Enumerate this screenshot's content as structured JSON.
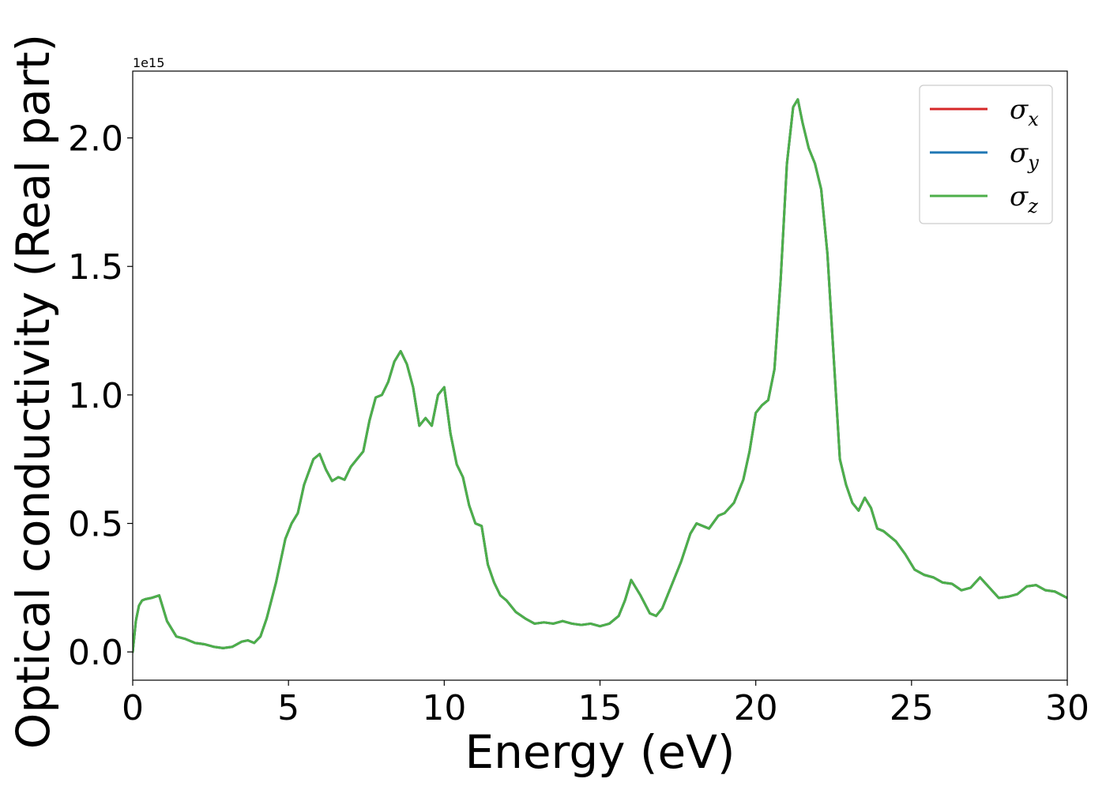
{
  "chart_data": {
    "type": "line",
    "xlabel": "Energy (eV)",
    "ylabel": "Optical conductivity (Real part)",
    "offset_text": "1e15",
    "xlim": [
      0,
      30
    ],
    "ylim": [
      -0.11,
      2.26
    ],
    "y_scale": 1000000000000000.0,
    "xticks": [
      0,
      5,
      10,
      15,
      20,
      25,
      30
    ],
    "xtick_labels": [
      "0",
      "5",
      "10",
      "15",
      "20",
      "25",
      "30"
    ],
    "yticks": [
      0.0,
      0.5,
      1.0,
      1.5,
      2.0
    ],
    "ytick_labels": [
      "0.0",
      "0.5",
      "1.0",
      "1.5",
      "2.0"
    ],
    "grid": false,
    "legend_placement": "top-right",
    "colors": {
      "x": "#d62728",
      "y": "#1f77b4",
      "z": "#4daf4a"
    },
    "x": [
      0,
      0.1,
      0.2,
      0.3,
      0.4,
      0.6,
      0.85,
      1.1,
      1.4,
      1.7,
      2.0,
      2.3,
      2.6,
      2.9,
      3.2,
      3.5,
      3.7,
      3.9,
      4.1,
      4.3,
      4.6,
      4.9,
      5.1,
      5.3,
      5.5,
      5.8,
      6.0,
      6.2,
      6.4,
      6.6,
      6.8,
      7.0,
      7.2,
      7.4,
      7.6,
      7.8,
      8.0,
      8.2,
      8.4,
      8.6,
      8.8,
      9.0,
      9.2,
      9.4,
      9.6,
      9.8,
      10.0,
      10.2,
      10.4,
      10.6,
      10.8,
      11.0,
      11.2,
      11.4,
      11.6,
      11.8,
      12.0,
      12.3,
      12.6,
      12.9,
      13.2,
      13.5,
      13.8,
      14.1,
      14.4,
      14.7,
      15.0,
      15.3,
      15.6,
      15.8,
      16.0,
      16.3,
      16.6,
      16.8,
      17.0,
      17.3,
      17.6,
      17.9,
      18.1,
      18.3,
      18.5,
      18.8,
      19.0,
      19.3,
      19.6,
      19.8,
      20.0,
      20.2,
      20.4,
      20.6,
      20.8,
      21.0,
      21.2,
      21.35,
      21.5,
      21.7,
      21.9,
      22.1,
      22.3,
      22.5,
      22.7,
      22.9,
      23.1,
      23.3,
      23.5,
      23.7,
      23.9,
      24.1,
      24.3,
      24.5,
      24.8,
      25.1,
      25.4,
      25.7,
      26.0,
      26.3,
      26.6,
      26.9,
      27.2,
      27.5,
      27.8,
      28.1,
      28.4,
      28.7,
      29.0,
      29.3,
      29.6,
      30.0
    ],
    "series": [
      {
        "name": "σ_x",
        "label_base": "σ",
        "label_sub": "x",
        "color_key": "x",
        "values": [
          0.0,
          0.12,
          0.18,
          0.2,
          0.205,
          0.21,
          0.22,
          0.12,
          0.06,
          0.05,
          0.035,
          0.03,
          0.02,
          0.015,
          0.02,
          0.04,
          0.045,
          0.035,
          0.06,
          0.13,
          0.27,
          0.44,
          0.5,
          0.54,
          0.65,
          0.75,
          0.77,
          0.71,
          0.665,
          0.68,
          0.67,
          0.72,
          0.75,
          0.78,
          0.9,
          0.99,
          1.0,
          1.05,
          1.13,
          1.17,
          1.12,
          1.03,
          0.88,
          0.91,
          0.88,
          1.0,
          1.03,
          0.85,
          0.73,
          0.68,
          0.57,
          0.5,
          0.49,
          0.34,
          0.27,
          0.22,
          0.2,
          0.155,
          0.13,
          0.11,
          0.115,
          0.11,
          0.12,
          0.11,
          0.105,
          0.11,
          0.1,
          0.11,
          0.14,
          0.2,
          0.28,
          0.22,
          0.15,
          0.14,
          0.17,
          0.26,
          0.35,
          0.46,
          0.5,
          0.49,
          0.48,
          0.53,
          0.54,
          0.58,
          0.67,
          0.78,
          0.93,
          0.96,
          0.98,
          1.1,
          1.45,
          1.9,
          2.12,
          2.15,
          2.06,
          1.96,
          1.9,
          1.8,
          1.55,
          1.15,
          0.75,
          0.65,
          0.58,
          0.55,
          0.6,
          0.56,
          0.48,
          0.47,
          0.45,
          0.43,
          0.38,
          0.32,
          0.3,
          0.29,
          0.27,
          0.265,
          0.24,
          0.25,
          0.29,
          0.25,
          0.21,
          0.215,
          0.225,
          0.255,
          0.26,
          0.24,
          0.235,
          0.21
        ]
      },
      {
        "name": "σ_y",
        "label_base": "σ",
        "label_sub": "y",
        "color_key": "y",
        "values": [
          0.0,
          0.12,
          0.18,
          0.2,
          0.205,
          0.21,
          0.22,
          0.12,
          0.06,
          0.05,
          0.035,
          0.03,
          0.02,
          0.015,
          0.02,
          0.04,
          0.045,
          0.035,
          0.06,
          0.13,
          0.27,
          0.44,
          0.5,
          0.54,
          0.65,
          0.75,
          0.77,
          0.71,
          0.665,
          0.68,
          0.67,
          0.72,
          0.75,
          0.78,
          0.9,
          0.99,
          1.0,
          1.05,
          1.13,
          1.17,
          1.12,
          1.03,
          0.88,
          0.91,
          0.88,
          1.0,
          1.03,
          0.85,
          0.73,
          0.68,
          0.57,
          0.5,
          0.49,
          0.34,
          0.27,
          0.22,
          0.2,
          0.155,
          0.13,
          0.11,
          0.115,
          0.11,
          0.12,
          0.11,
          0.105,
          0.11,
          0.1,
          0.11,
          0.14,
          0.2,
          0.28,
          0.22,
          0.15,
          0.14,
          0.17,
          0.26,
          0.35,
          0.46,
          0.5,
          0.49,
          0.48,
          0.53,
          0.54,
          0.58,
          0.67,
          0.78,
          0.93,
          0.96,
          0.98,
          1.1,
          1.45,
          1.9,
          2.12,
          2.15,
          2.06,
          1.96,
          1.9,
          1.8,
          1.55,
          1.15,
          0.75,
          0.65,
          0.58,
          0.55,
          0.6,
          0.56,
          0.48,
          0.47,
          0.45,
          0.43,
          0.38,
          0.32,
          0.3,
          0.29,
          0.27,
          0.265,
          0.24,
          0.25,
          0.29,
          0.25,
          0.21,
          0.215,
          0.225,
          0.255,
          0.26,
          0.24,
          0.235,
          0.21
        ]
      },
      {
        "name": "σ_z",
        "label_base": "σ",
        "label_sub": "z",
        "color_key": "z",
        "values": [
          0.0,
          0.12,
          0.18,
          0.2,
          0.205,
          0.21,
          0.22,
          0.12,
          0.06,
          0.05,
          0.035,
          0.03,
          0.02,
          0.015,
          0.02,
          0.04,
          0.045,
          0.035,
          0.06,
          0.13,
          0.27,
          0.44,
          0.5,
          0.54,
          0.65,
          0.75,
          0.77,
          0.71,
          0.665,
          0.68,
          0.67,
          0.72,
          0.75,
          0.78,
          0.9,
          0.99,
          1.0,
          1.05,
          1.13,
          1.17,
          1.12,
          1.03,
          0.88,
          0.91,
          0.88,
          1.0,
          1.03,
          0.85,
          0.73,
          0.68,
          0.57,
          0.5,
          0.49,
          0.34,
          0.27,
          0.22,
          0.2,
          0.155,
          0.13,
          0.11,
          0.115,
          0.11,
          0.12,
          0.11,
          0.105,
          0.11,
          0.1,
          0.11,
          0.14,
          0.2,
          0.28,
          0.22,
          0.15,
          0.14,
          0.17,
          0.26,
          0.35,
          0.46,
          0.5,
          0.49,
          0.48,
          0.53,
          0.54,
          0.58,
          0.67,
          0.78,
          0.93,
          0.96,
          0.98,
          1.1,
          1.45,
          1.9,
          2.12,
          2.15,
          2.06,
          1.96,
          1.9,
          1.8,
          1.55,
          1.15,
          0.75,
          0.65,
          0.58,
          0.55,
          0.6,
          0.56,
          0.48,
          0.47,
          0.45,
          0.43,
          0.38,
          0.32,
          0.3,
          0.29,
          0.27,
          0.265,
          0.24,
          0.25,
          0.29,
          0.25,
          0.21,
          0.215,
          0.225,
          0.255,
          0.26,
          0.24,
          0.235,
          0.21
        ]
      }
    ]
  }
}
